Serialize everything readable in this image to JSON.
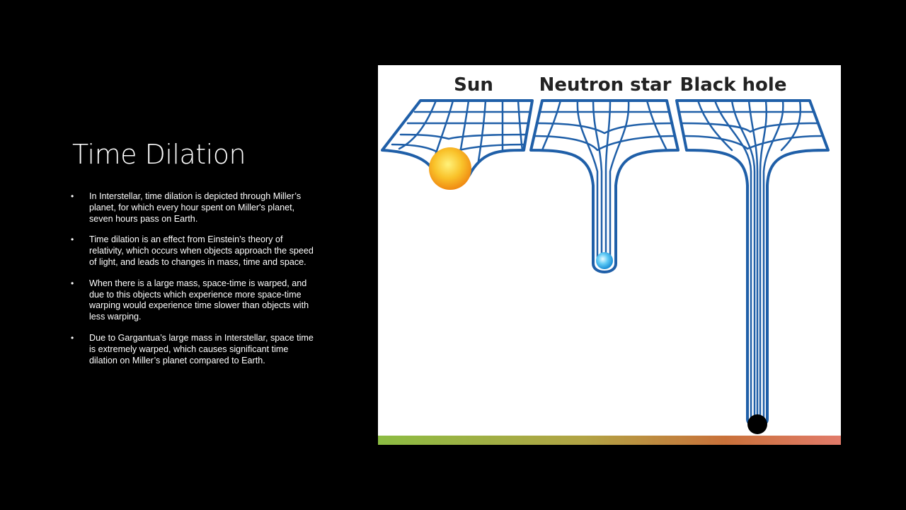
{
  "slide": {
    "title": "Time Dilation",
    "bullet_marker": "•",
    "bullets": [
      "In Interstellar, time dilation is depicted through Miller’s planet, for which every hour spent on Miller's planet, seven hours pass on Earth.",
      "Time dilation is an effect from Einstein’s theory of relativity, which occurs when objects approach the speed of light, and leads to changes in mass, time and space.",
      "When there is a large mass, space-time is warped, and due to this objects which experience more space-time warping would experience time slower than objects with less warping.",
      "Due to Gargantua’s large mass in Interstellar, space time is extremely warped, which causes significant time dilation on Miller’s planet compared to Earth."
    ]
  },
  "figure": {
    "labels": {
      "sun": "Sun",
      "neutron_star": "Neutron star",
      "black_hole": "Black hole"
    },
    "colors": {
      "grid": "#1f5fa8",
      "sun": "#f7b21a",
      "neutron_star": "#3fb6ef",
      "black_hole": "#000000",
      "gradient_start": "#8cbc43",
      "gradient_mid": "#c9713a",
      "gradient_end": "#e27b6a"
    }
  }
}
